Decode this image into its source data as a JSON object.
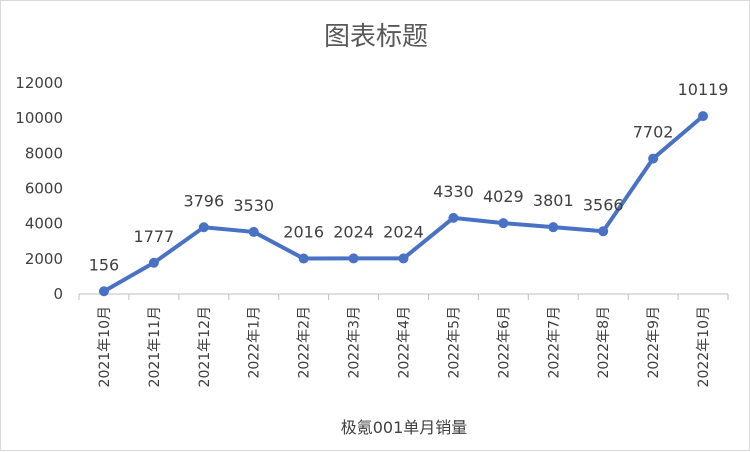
{
  "chart_data": {
    "type": "line",
    "title": "图表标题",
    "categories": [
      "2021年10月",
      "2021年11月",
      "2021年12月",
      "2022年1月",
      "2022年2月",
      "2022年3月",
      "2022年4月",
      "2022年5月",
      "2022年6月",
      "2022年7月",
      "2022年8月",
      "2022年9月",
      "2022年10月"
    ],
    "series": [
      {
        "name": "极氪001单月销量",
        "values": [
          156,
          1777,
          3796,
          3530,
          2016,
          2024,
          2024,
          4330,
          4029,
          3801,
          3566,
          7702,
          10119
        ],
        "color": "#4a72c4"
      }
    ],
    "yticks": [
      0,
      2000,
      4000,
      6000,
      8000,
      10000,
      12000
    ],
    "ylim": [
      0,
      12000
    ],
    "grid": false,
    "legend": "bottom"
  }
}
